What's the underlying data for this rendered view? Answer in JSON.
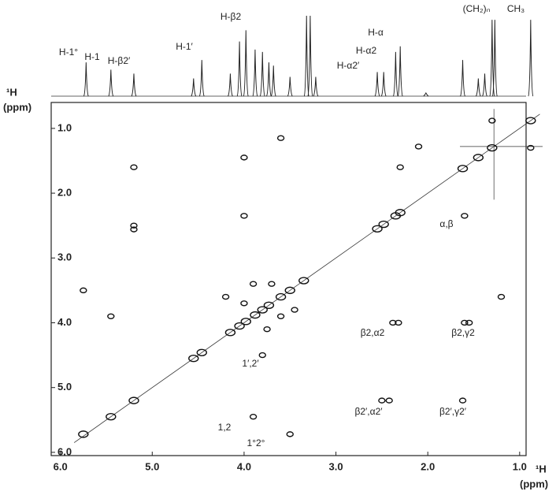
{
  "chart_data": {
    "type": "scatter",
    "xlabel": "¹H",
    "xunit": "(ppm)",
    "ylabel": "¹H",
    "yunit": "(ppm)",
    "xlim": [
      6.1,
      0.93
    ],
    "ylim": [
      0.6,
      6.05
    ],
    "xticks": [
      {
        "value": 6,
        "label": "6.0"
      },
      {
        "value": 5,
        "label": "5.0"
      },
      {
        "value": 4,
        "label": "4.0"
      },
      {
        "value": 3,
        "label": "3.0"
      },
      {
        "value": 2,
        "label": "2.0"
      },
      {
        "value": 1,
        "label": "1.0"
      }
    ],
    "yticks": [
      {
        "value": 1,
        "label": "1.0"
      },
      {
        "value": 2,
        "label": "2.0"
      },
      {
        "value": 3,
        "label": "3.0"
      },
      {
        "value": 4,
        "label": "4.0"
      },
      {
        "value": 5,
        "label": "5.0"
      },
      {
        "value": 6,
        "label": "6.0"
      }
    ],
    "color": "#111111",
    "spectrum": {
      "x": [
        5.72,
        5.45,
        5.2,
        4.55,
        4.46,
        4.15,
        4.05,
        3.98,
        3.88,
        3.8,
        3.73,
        3.68,
        3.5,
        3.32,
        3.28,
        3.22,
        2.55,
        2.48,
        2.35,
        2.3,
        2.02,
        1.62,
        1.45,
        1.38,
        1.3,
        1.27,
        0.88
      ],
      "heights": [
        42,
        33,
        28,
        22,
        45,
        28,
        68,
        82,
        58,
        55,
        42,
        38,
        24,
        100,
        100,
        24,
        30,
        30,
        55,
        62,
        4,
        45,
        22,
        28,
        95,
        95,
        95
      ]
    },
    "annotations": [
      "H-1°",
      "H-1",
      "H-β2′",
      "H-1′",
      "H-β2",
      "H-α2′",
      "H-α2",
      "H-α",
      "(CH₂)ₙ",
      "CH₃"
    ],
    "peak_labels": [
      "α,β",
      "β2,α2",
      "β2,γ2",
      "1′,2′",
      "β2′,α2′",
      "β2′,γ2′",
      "1,2",
      "1°2°"
    ],
    "x": [
      5.75,
      5.45,
      5.2,
      4.55,
      4.46,
      4.15,
      4.05,
      3.98,
      3.88,
      3.8,
      3.73,
      3.6,
      3.5,
      3.35,
      2.55,
      2.48,
      2.35,
      2.3,
      1.62,
      1.45,
      1.3,
      0.88,
      1.3,
      0.88,
      5.2,
      5.2,
      5.2,
      4.0,
      4.0,
      3.6,
      2.3,
      1.6,
      2.38,
      2.32,
      1.6,
      1.55,
      2.5,
      2.42,
      1.62,
      3.8,
      5.75,
      5.45,
      1.2,
      3.9,
      3.5,
      4.0,
      3.7,
      3.6,
      3.75,
      3.45,
      4.2,
      3.9,
      2.1
    ],
    "values": [
      5.72,
      5.45,
      5.2,
      4.55,
      4.46,
      4.15,
      4.05,
      3.98,
      3.88,
      3.8,
      3.73,
      3.6,
      3.5,
      3.35,
      2.55,
      2.48,
      2.35,
      2.3,
      1.62,
      1.45,
      1.3,
      0.88,
      0.88,
      1.3,
      1.6,
      2.5,
      2.56,
      1.45,
      2.35,
      1.15,
      1.6,
      2.35,
      4.0,
      4.0,
      4.0,
      4.0,
      5.2,
      5.2,
      5.2,
      4.5,
      3.5,
      3.9,
      3.6,
      5.45,
      5.72,
      3.7,
      3.4,
      3.9,
      4.1,
      3.8,
      3.6,
      3.4,
      1.28
    ]
  }
}
